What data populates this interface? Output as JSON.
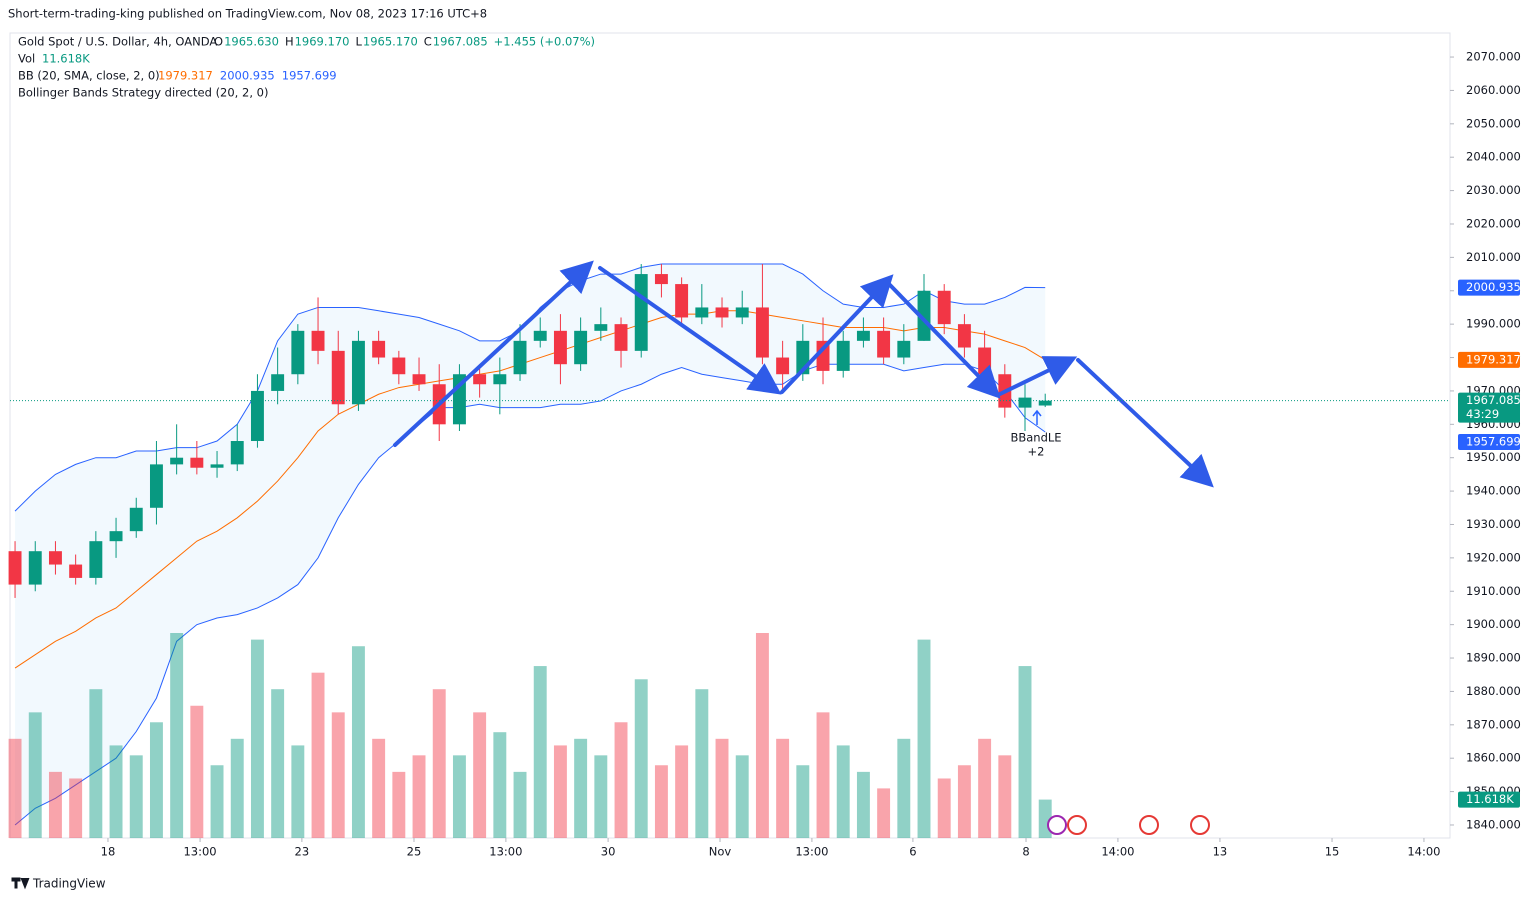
{
  "header": {
    "publisher": "Short-term-trading-king published on TradingView.com, Nov 08, 2023 17:16 UTC+8",
    "symbol": "Gold Spot / U.S. Dollar, 4h, OANDA",
    "ohlc": [
      {
        "key": "O",
        "value": "1965.630"
      },
      {
        "key": "H",
        "value": "1969.170"
      },
      {
        "key": "L",
        "value": "1965.170"
      },
      {
        "key": "C",
        "value": "1967.085"
      }
    ],
    "change": "+1.455 (+0.07%)",
    "vol_name": "Vol",
    "vol_value": "11.618K",
    "bb_name": "BB (20, SMA, close, 2, 0)",
    "bb_values": [
      "1979.317",
      "2000.935",
      "1957.699"
    ],
    "strategy": "Bollinger Bands Strategy directed (20, 2, 0)"
  },
  "chart_data": {
    "type": "candlestick",
    "xlim": [
      -0.25,
      71.04
    ],
    "xticks": [
      {
        "value": 4.6,
        "label": "18"
      },
      {
        "value": 9.16,
        "label": "13:00"
      },
      {
        "value": 14.2,
        "label": "23"
      },
      {
        "value": 19.75,
        "label": "25"
      },
      {
        "value": 24.3,
        "label": "13:00"
      },
      {
        "value": 29.36,
        "label": "30"
      },
      {
        "value": 34.9,
        "label": "Nov"
      },
      {
        "value": 39.45,
        "label": "13:00"
      },
      {
        "value": 44.45,
        "label": "6"
      },
      {
        "value": 50.05,
        "label": "8"
      },
      {
        "value": 54.6,
        "label": "14:00"
      },
      {
        "value": 59.65,
        "label": "13"
      },
      {
        "value": 65.2,
        "label": "15"
      },
      {
        "value": 69.75,
        "label": "14:00"
      }
    ],
    "ylim": [
      1836.1,
      2077.2
    ],
    "yticks": [
      {
        "value": 2070,
        "label": "2070.000"
      },
      {
        "value": 2060,
        "label": "2060.000"
      },
      {
        "value": 2050,
        "label": "2050.000"
      },
      {
        "value": 2040,
        "label": "2040.000"
      },
      {
        "value": 2030,
        "label": "2030.000"
      },
      {
        "value": 2020,
        "label": "2020.000"
      },
      {
        "value": 2010,
        "label": "2010.000"
      },
      {
        "value": 2000,
        "label": "2000.000"
      },
      {
        "value": 1990,
        "label": "1990.000"
      },
      {
        "value": 1980,
        "label": "1980.000"
      },
      {
        "value": 1970,
        "label": "1970.000"
      },
      {
        "value": 1960,
        "label": "1960.000"
      },
      {
        "value": 1950,
        "label": "1950.000"
      },
      {
        "value": 1940,
        "label": "1940.000"
      },
      {
        "value": 1930,
        "label": "1930.000"
      },
      {
        "value": 1920,
        "label": "1920.000"
      },
      {
        "value": 1910,
        "label": "1910.000"
      },
      {
        "value": 1900,
        "label": "1900.000"
      },
      {
        "value": 1890,
        "label": "1890.000"
      },
      {
        "value": 1880,
        "label": "1880.000"
      },
      {
        "value": 1870,
        "label": "1870.000"
      },
      {
        "value": 1860,
        "label": "1860.000"
      },
      {
        "value": 1850,
        "label": "1850.000"
      },
      {
        "value": 1840,
        "label": "1840.000"
      }
    ],
    "up_color": "#089981",
    "down_color": "#f23645",
    "open": [
      1922,
      1912,
      1922,
      1918,
      1914,
      1925,
      1928,
      1935,
      1948,
      1950,
      1947,
      1948,
      1955,
      1970,
      1975,
      1988,
      1982,
      1966,
      1985,
      1980,
      1975,
      1972,
      1960,
      1975,
      1972,
      1975,
      1985,
      1988,
      1978,
      1988,
      1990,
      1982,
      2005,
      2002,
      1992,
      1995,
      1992,
      1995,
      1980,
      1975,
      1985,
      1976,
      1985,
      1988,
      1980,
      1985,
      2000,
      1990,
      1983,
      1975,
      1965,
      1965.63
    ],
    "high": [
      1925,
      1925,
      1925,
      1921,
      1928,
      1932,
      1938,
      1955,
      1960,
      1955,
      1952,
      1960,
      1975,
      1983,
      1990,
      1998,
      1988,
      1988,
      1988,
      1982,
      1980,
      1978,
      1978,
      1978,
      1980,
      1990,
      1992,
      1993,
      1992,
      1995,
      1992,
      2008,
      2008,
      2004,
      2002,
      1998,
      2000,
      2008,
      1985,
      1990,
      1992,
      1988,
      1992,
      1992,
      1990,
      2005,
      2002,
      1993,
      1988,
      1978,
      1972,
      1969.17
    ],
    "low": [
      1908,
      1910,
      1915,
      1912,
      1912,
      1920,
      1926,
      1930,
      1945,
      1945,
      1944,
      1946,
      1953,
      1966,
      1972,
      1978,
      1963,
      1964,
      1978,
      1972,
      1970,
      1955,
      1958,
      1968,
      1963,
      1973,
      1983,
      1972,
      1976,
      1985,
      1977,
      1980,
      1998,
      1990,
      1990,
      1989,
      1990,
      1978,
      1970,
      1973,
      1972,
      1974,
      1983,
      1978,
      1978,
      1985,
      1987,
      1980,
      1972,
      1962,
      1958,
      1965.17
    ],
    "close": [
      1912,
      1922,
      1918,
      1914,
      1925,
      1928,
      1935,
      1948,
      1950,
      1947,
      1948,
      1955,
      1970,
      1975,
      1988,
      1982,
      1966,
      1985,
      1980,
      1975,
      1972,
      1960,
      1975,
      1972,
      1975,
      1985,
      1988,
      1978,
      1988,
      1990,
      1982,
      2005,
      2002,
      1992,
      1995,
      1992,
      1995,
      1980,
      1975,
      1985,
      1976,
      1985,
      1988,
      1980,
      1985,
      2000,
      1990,
      1983,
      1975,
      1965,
      1968,
      1967.085
    ],
    "volume": [
      30,
      38,
      20,
      18,
      45,
      28,
      25,
      35,
      62,
      40,
      22,
      30,
      60,
      45,
      28,
      50,
      38,
      58,
      30,
      20,
      25,
      45,
      25,
      38,
      32,
      20,
      52,
      28,
      30,
      25,
      35,
      48,
      22,
      28,
      45,
      30,
      25,
      62,
      30,
      22,
      38,
      28,
      20,
      15,
      30,
      60,
      18,
      22,
      30,
      25,
      52,
      11.618
    ],
    "volume_label": "11.618K",
    "bands": {
      "upper": [
        1934,
        1940,
        1945,
        1948,
        1950,
        1950,
        1952,
        1952,
        1953,
        1953,
        1955,
        1960,
        1970,
        1985,
        1993,
        1995,
        1995,
        1995,
        1994,
        1993,
        1992,
        1990,
        1988,
        1985,
        1985,
        1988,
        1995,
        2000,
        2003,
        2005,
        2005,
        2007,
        2008,
        2008,
        2008,
        2008,
        2008,
        2008,
        2008,
        2005,
        2000,
        1996,
        1995,
        1995,
        1996,
        2000,
        1997,
        1996,
        1996,
        1998,
        2001,
        2000.935
      ],
      "middle": [
        1887,
        1891,
        1895,
        1898,
        1902,
        1905,
        1910,
        1915,
        1920,
        1925,
        1928,
        1932,
        1937,
        1943,
        1950,
        1958,
        1963,
        1966,
        1969,
        1971,
        1972,
        1973,
        1974,
        1975,
        1976,
        1978,
        1980,
        1982,
        1984,
        1986,
        1988,
        1990,
        1992,
        1993,
        1993,
        1994,
        1994,
        1993,
        1992,
        1991,
        1990,
        1989,
        1989,
        1989,
        1988,
        1989,
        1989,
        1988,
        1987,
        1985,
        1983,
        1979.317
      ],
      "lower": [
        1840,
        1845,
        1848,
        1852,
        1856,
        1860,
        1868,
        1878,
        1895,
        1900,
        1902,
        1903,
        1905,
        1908,
        1912,
        1920,
        1932,
        1942,
        1950,
        1955,
        1960,
        1965,
        1965,
        1966,
        1965,
        1965,
        1965,
        1966,
        1966,
        1967,
        1970,
        1972,
        1975,
        1977,
        1975,
        1974,
        1973,
        1972,
        1972,
        1976,
        1978,
        1978,
        1978,
        1978,
        1976,
        1977,
        1978,
        1978,
        1976,
        1970,
        1962,
        1957.699
      ],
      "band_color": "#2962ff",
      "middle_color": "#ff6d00"
    },
    "countdown": "43:29",
    "signal": {
      "name": "BBandLE",
      "count": "+2"
    },
    "brand": "TradingView"
  }
}
